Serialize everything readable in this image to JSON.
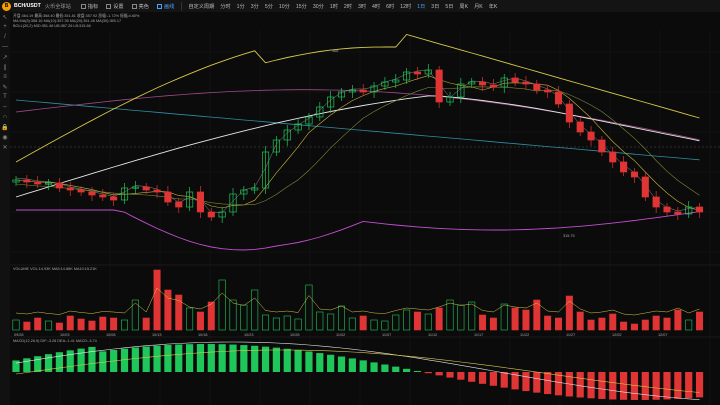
{
  "toolbar": {
    "logo_letter": "B",
    "symbol": "BCH/USDT",
    "exchange": "火币全球站",
    "indicator_label": "指标",
    "settings_label": "设置",
    "color_label": "亮色",
    "drawing_label": "画线",
    "custom_period_label": "自定义周期",
    "periods": [
      "分时",
      "1分",
      "3分",
      "5分",
      "10分",
      "15分",
      "30分",
      "1时",
      "2时",
      "3时",
      "4时",
      "6时",
      "12时",
      "1日",
      "3日",
      "5日",
      "周K",
      "月K",
      "年K"
    ],
    "active_period": "1日"
  },
  "left_tools": [
    "cursor-icon",
    "crosshair-icon",
    "trend-line-icon",
    "horizontal-line-icon",
    "ray-icon",
    "channel-icon",
    "fibonacci-icon",
    "pen-icon",
    "text-icon",
    "measure-icon",
    "magnet-icon",
    "lock-icon",
    "eye-icon",
    "trash-icon"
  ],
  "info_lines": {
    "line1": "开盘:364.19 最高:368.40 最低:351.81 收盘:357.92 涨幅:-1.72% 振幅:4.60%",
    "line2": "MA   MA(5):358.16   MA(10):357.35   MA(20):351.46   MA(30):355.17",
    "line3": "BOLL(20,2)  MID:351.46  UB:387.26  LB:315.66"
  },
  "price_labels": {
    "high_mark": "368",
    "low_mark": "315.75"
  },
  "volume_info": "VOLUME   VOL:14.93K  MA5:14.86K  MA10:15.21K",
  "macd_info": "MACD(12,26,9)  DIF:-3.28  DEA:-1.41  MACD:-3.74",
  "date_axis": [
    "09/28",
    "10/03",
    "10/08",
    "10/13",
    "10/18",
    "10/23",
    "10/28",
    "11/02",
    "11/07",
    "11/12",
    "11/17",
    "11/22",
    "11/27",
    "12/02",
    "12/07"
  ],
  "colors": {
    "up": "#1fc75a",
    "down": "#e03535",
    "boll_upper": "#d8c84a",
    "boll_lower": "#c24fd0",
    "ma_white": "#e6e6e6",
    "ma_purple": "#9d4b8c",
    "ma_teal": "#2f8fa0",
    "accent": "#4aa3ff"
  }
}
